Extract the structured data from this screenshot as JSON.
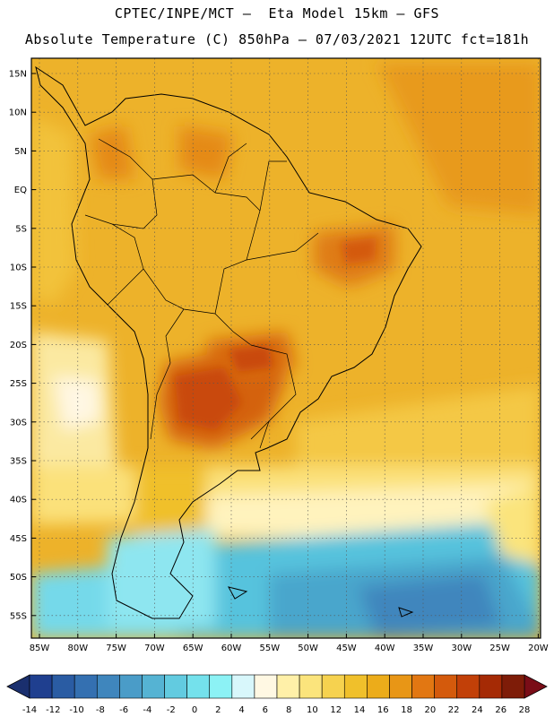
{
  "header": {
    "line1": "CPTEC/INPE/MCT –  Eta Model 15km – GFS",
    "line2": "Absolute Temperature (C) 850hPa – 07/03/2021 12UTC fct=181h"
  },
  "map": {
    "region": "South America",
    "lat_labels": [
      "15N",
      "10N",
      "5N",
      "EQ",
      "5S",
      "10S",
      "15S",
      "20S",
      "25S",
      "30S",
      "35S",
      "40S",
      "45S",
      "50S",
      "55S"
    ],
    "lon_labels": [
      "85W",
      "80W",
      "75W",
      "70W",
      "65W",
      "60W",
      "55W",
      "50W",
      "45W",
      "40W",
      "35W",
      "30W",
      "25W",
      "20W"
    ]
  },
  "colorbar": {
    "ticks": [
      "-14",
      "-12",
      "-10",
      "-8",
      "-6",
      "-4",
      "-2",
      "0",
      "2",
      "4",
      "6",
      "8",
      "10",
      "12",
      "14",
      "16",
      "18",
      "20",
      "22",
      "24",
      "26",
      "28"
    ],
    "colors": [
      "#1f3f8f",
      "#2a5ca3",
      "#3470b1",
      "#3f86bd",
      "#4a9cc8",
      "#55b3d3",
      "#62cbe0",
      "#74e1ec",
      "#8cf2f5",
      "#d8f7fb",
      "#fff8e3",
      "#fff0a8",
      "#fbe47c",
      "#f6d24f",
      "#f0c02b",
      "#ecac1a",
      "#e89616",
      "#e27712",
      "#d45a0c",
      "#c24008",
      "#a52a05",
      "#7e1c08"
    ],
    "under_color": "#1a2f6e",
    "over_color": "#7a0d17"
  }
}
